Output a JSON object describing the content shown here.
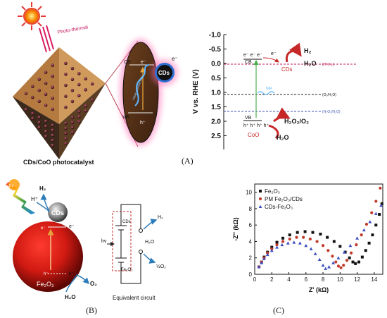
{
  "panel_a": {
    "label": "(A)",
    "photothermal_label": "Photo-thermal",
    "photocatalyst_caption": "CDs/CoO photocatalyst",
    "particle": {
      "cb": "CB",
      "vb": "VB",
      "electron": "e⁻",
      "hole": "h⁺",
      "cds": "CDs",
      "electron_out": "e⁻",
      "heat_conduction": "Heat conduction"
    },
    "energy_diagram": {
      "y_axis_label": "V vs. RHE (V)",
      "ticks": [
        "-1.0",
        "-0.5",
        "0.0",
        "0.5",
        "1.0",
        "1.5",
        "2.0",
        "2.5"
      ],
      "cd_band_electrons": "e⁻ e⁻ e⁻",
      "cd_band_label": "CB",
      "cds_label": "CDs",
      "transfer_electron": "e⁻",
      "h2_label": "H₂",
      "h2o_h_label": "H₂O",
      "h_couple": "(H⁺/H₂)",
      "o2_couple": "(O₂/H₂O)",
      "h2o2_couple": "(H₂O₂/H₂O)",
      "vb_label": "VB",
      "vb_holes": "h⁺ h⁺ h⁺ h⁺",
      "coo_label": "CoO",
      "h2o2_o2_label": "H₂O₂/O₂",
      "h2o_o_label": "H₂O",
      "nir_label": "NIR",
      "colors": {
        "h_line": "#c2185b",
        "o2_line": "#222222",
        "h2o2_line": "#3f51b5",
        "transition": "#4caf50",
        "cds_text": "#c62828",
        "coo_text": "#c62828"
      }
    }
  },
  "panel_b": {
    "label": "(B)",
    "hv": "hv",
    "h_plus": "H⁺",
    "h2": "H₂",
    "cds": "CDs",
    "electron": "e⁻",
    "electron2": "e⁻",
    "hole": "h⁺",
    "hole2": "h⁺",
    "fe2o3": "Fe₂O₃",
    "o2": "O₂",
    "h2o": "H₂O",
    "circuit": {
      "cds": "CDs",
      "hv": "hv",
      "fe2o3": "Fe₂O₃",
      "h2": "H₂",
      "h2o": "H₂O",
      "o2": "½O₂",
      "caption": "Equivalent circuit"
    }
  },
  "panel_c": {
    "label": "(C)",
    "chart_data": {
      "type": "scatter",
      "xlabel": "Z' (kΩ)",
      "ylabel": "-Z'' (kΩ)",
      "xlim": [
        0,
        15
      ],
      "ylim": [
        0,
        11
      ],
      "x_ticks": [
        0,
        2,
        4,
        6,
        8,
        10,
        12,
        14
      ],
      "y_ticks": [
        0,
        2,
        4,
        6,
        8,
        10
      ],
      "legend_position": "top-left",
      "series": [
        {
          "name": "Fe₂O₃",
          "color": "#111111",
          "marker": "square",
          "points": [
            [
              0.5,
              0.9
            ],
            [
              0.8,
              1.5
            ],
            [
              1.1,
              2.1
            ],
            [
              1.5,
              2.7
            ],
            [
              2.0,
              3.3
            ],
            [
              2.6,
              3.9
            ],
            [
              3.3,
              4.4
            ],
            [
              4.1,
              4.8
            ],
            [
              5.0,
              5.1
            ],
            [
              5.9,
              5.2
            ],
            [
              6.8,
              5.1
            ],
            [
              7.7,
              4.9
            ],
            [
              8.5,
              4.5
            ],
            [
              9.3,
              4.0
            ],
            [
              10.0,
              3.4
            ],
            [
              10.6,
              2.7
            ],
            [
              11.1,
              2.0
            ],
            [
              11.5,
              1.5
            ],
            [
              11.8,
              1.3
            ],
            [
              12.2,
              1.5
            ],
            [
              12.6,
              2.1
            ],
            [
              13.0,
              2.9
            ],
            [
              13.4,
              3.8
            ],
            [
              13.8,
              4.8
            ],
            [
              14.2,
              6.0
            ],
            [
              14.6,
              7.3
            ],
            [
              14.9,
              8.6
            ]
          ]
        },
        {
          "name": "PM Fe₂O₃/CDs",
          "color": "#c0392b",
          "marker": "circle",
          "points": [
            [
              0.5,
              0.9
            ],
            [
              0.8,
              1.5
            ],
            [
              1.1,
              2.0
            ],
            [
              1.5,
              2.6
            ],
            [
              2.0,
              3.1
            ],
            [
              2.6,
              3.6
            ],
            [
              3.3,
              4.0
            ],
            [
              4.1,
              4.3
            ],
            [
              4.9,
              4.5
            ],
            [
              5.7,
              4.5
            ],
            [
              6.5,
              4.3
            ],
            [
              7.3,
              4.0
            ],
            [
              8.0,
              3.5
            ],
            [
              8.6,
              2.9
            ],
            [
              9.1,
              2.2
            ],
            [
              9.5,
              1.5
            ],
            [
              9.8,
              1.0
            ],
            [
              10.1,
              0.8
            ],
            [
              10.4,
              1.1
            ],
            [
              10.8,
              1.7
            ],
            [
              11.3,
              2.6
            ],
            [
              11.9,
              3.6
            ],
            [
              12.5,
              4.8
            ],
            [
              13.1,
              6.1
            ],
            [
              13.7,
              7.5
            ],
            [
              14.2,
              8.9
            ],
            [
              14.7,
              10.5
            ]
          ]
        },
        {
          "name": "CDs-Fe₂O₃",
          "color": "#3b4cc0",
          "marker": "triangle",
          "points": [
            [
              0.5,
              0.9
            ],
            [
              0.8,
              1.4
            ],
            [
              1.1,
              1.9
            ],
            [
              1.5,
              2.4
            ],
            [
              2.0,
              2.9
            ],
            [
              2.6,
              3.3
            ],
            [
              3.2,
              3.6
            ],
            [
              3.9,
              3.8
            ],
            [
              4.6,
              3.9
            ],
            [
              5.3,
              3.8
            ],
            [
              6.0,
              3.5
            ],
            [
              6.6,
              3.1
            ],
            [
              7.1,
              2.5
            ],
            [
              7.6,
              1.8
            ],
            [
              8.0,
              1.1
            ],
            [
              8.3,
              0.7
            ],
            [
              8.7,
              0.9
            ],
            [
              9.2,
              1.4
            ],
            [
              9.8,
              2.0
            ],
            [
              10.5,
              2.7
            ],
            [
              11.2,
              3.5
            ],
            [
              12.0,
              4.4
            ],
            [
              12.8,
              5.4
            ],
            [
              13.5,
              6.4
            ],
            [
              14.2,
              7.4
            ],
            [
              14.8,
              8.4
            ]
          ]
        }
      ]
    }
  }
}
